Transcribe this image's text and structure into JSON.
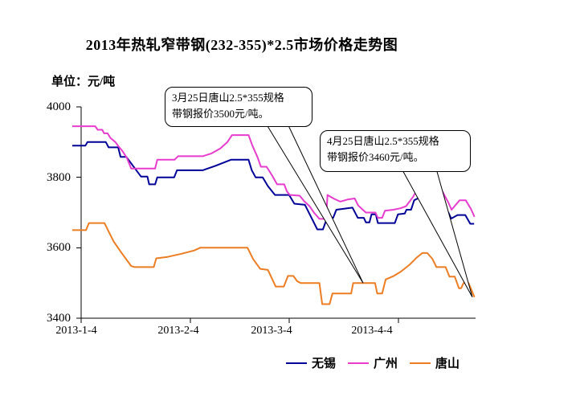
{
  "title": "2013年热轧窄带钢(232-355)*2.5市场价格走势图",
  "unit_label": "单位：元/吨",
  "y_axis": {
    "ticks": [
      "4000",
      "3800",
      "3600",
      "3400"
    ]
  },
  "x_axis": {
    "ticks": [
      {
        "label": "2013-1-4",
        "day": 0
      },
      {
        "label": "2013-2-4",
        "day": 31
      },
      {
        "label": "2013-3-4",
        "day": 59
      },
      {
        "label": "2013-4-4",
        "day": 90
      }
    ]
  },
  "legend": [
    {
      "key": "wuxi",
      "name": "无锡",
      "color": "#000099"
    },
    {
      "key": "guangzhou",
      "name": "广州",
      "color": "#E83CCF"
    },
    {
      "key": "tangshan",
      "name": "唐山",
      "color": "#ED7D22"
    }
  ],
  "callouts": [
    {
      "line1": "3月25日唐山2.5*355规格",
      "line2": "带钢报价3500元/吨。",
      "target_day": 80,
      "target_value": 3500
    },
    {
      "line1": "4月25日唐山2.5*355规格",
      "line2": "带钢报价3460元/吨。",
      "target_day": 111,
      "target_value": 3460
    }
  ],
  "chart_data": {
    "type": "line",
    "title": "2013年热轧窄带钢(232-355)*2.5市场价格走势图",
    "ylabel": "元/吨",
    "ylim": [
      3400,
      4000
    ],
    "grid": false,
    "legend_position": "bottom",
    "x_unit": "day offset from 2013-01-04",
    "x_tick_dates": [
      "2013-1-4",
      "2013-2-4",
      "2013-3-4",
      "2013-4-4"
    ],
    "series": [
      {
        "key": "wuxi",
        "name": "无锡",
        "color": "#000099",
        "points": [
          [
            0,
            3890
          ],
          [
            1.2,
            3890
          ],
          [
            1.8,
            3900
          ],
          [
            7,
            3900
          ],
          [
            7.8,
            3885
          ],
          [
            10.5,
            3885
          ],
          [
            11.2,
            3858
          ],
          [
            12.8,
            3858
          ],
          [
            17,
            3802
          ],
          [
            18.8,
            3802
          ],
          [
            19.3,
            3780
          ],
          [
            21,
            3780
          ],
          [
            21.6,
            3800
          ],
          [
            26.4,
            3800
          ],
          [
            27.2,
            3820
          ],
          [
            34.5,
            3820
          ],
          [
            38,
            3832
          ],
          [
            42.5,
            3850
          ],
          [
            47.5,
            3850
          ],
          [
            48.4,
            3820
          ],
          [
            49.5,
            3800
          ],
          [
            51.5,
            3800
          ],
          [
            53,
            3775
          ],
          [
            55,
            3750
          ],
          [
            59,
            3750
          ],
          [
            60.5,
            3725
          ],
          [
            63.5,
            3722
          ],
          [
            67,
            3652
          ],
          [
            68.6,
            3652
          ],
          [
            69.8,
            3685
          ],
          [
            71.5,
            3685
          ],
          [
            72.4,
            3708
          ],
          [
            77,
            3714
          ],
          [
            78.5,
            3685
          ],
          [
            80.2,
            3685
          ],
          [
            80.8,
            3672
          ],
          [
            81.8,
            3672
          ],
          [
            82.4,
            3695
          ],
          [
            83.6,
            3695
          ],
          [
            84.2,
            3670
          ],
          [
            89,
            3670
          ],
          [
            89.9,
            3695
          ],
          [
            91.8,
            3697
          ],
          [
            92.3,
            3708
          ],
          [
            93.6,
            3708
          ],
          [
            94.5,
            3735
          ],
          [
            95.5,
            3740
          ],
          [
            98,
            3752
          ],
          [
            100.5,
            3748
          ],
          [
            102.5,
            3728
          ],
          [
            104.2,
            3700
          ],
          [
            105,
            3683
          ],
          [
            106.8,
            3693
          ],
          [
            109,
            3693
          ],
          [
            110.4,
            3668
          ],
          [
            111.5,
            3668
          ]
        ]
      },
      {
        "key": "guangzhou",
        "name": "广州",
        "color": "#E83CCF",
        "points": [
          [
            0,
            3945
          ],
          [
            4,
            3945
          ],
          [
            4.7,
            3935
          ],
          [
            6,
            3935
          ],
          [
            6.5,
            3925
          ],
          [
            7.5,
            3925
          ],
          [
            8.3,
            3912
          ],
          [
            9.7,
            3900
          ],
          [
            10.6,
            3888
          ],
          [
            11.7,
            3875
          ],
          [
            13,
            3855
          ],
          [
            14.2,
            3825
          ],
          [
            21,
            3825
          ],
          [
            21.6,
            3850
          ],
          [
            26.5,
            3850
          ],
          [
            27.5,
            3860
          ],
          [
            34.5,
            3860
          ],
          [
            37,
            3868
          ],
          [
            39.5,
            3882
          ],
          [
            41.5,
            3900
          ],
          [
            42.8,
            3920
          ],
          [
            47.5,
            3920
          ],
          [
            48.6,
            3890
          ],
          [
            50,
            3858
          ],
          [
            51,
            3830
          ],
          [
            52.6,
            3830
          ],
          [
            54.2,
            3805
          ],
          [
            55.6,
            3780
          ],
          [
            57.6,
            3780
          ],
          [
            58.4,
            3760
          ],
          [
            59.2,
            3750
          ],
          [
            62,
            3748
          ],
          [
            63.2,
            3733
          ],
          [
            64.8,
            3718
          ],
          [
            66.2,
            3698
          ],
          [
            67.6,
            3682
          ],
          [
            69.5,
            3682
          ],
          [
            69.9,
            3750
          ],
          [
            71.6,
            3740
          ],
          [
            73.5,
            3731
          ],
          [
            75.6,
            3737
          ],
          [
            77.6,
            3740
          ],
          [
            78.6,
            3720
          ],
          [
            80,
            3707
          ],
          [
            80.8,
            3700
          ],
          [
            83.5,
            3700
          ],
          [
            84.2,
            3685
          ],
          [
            85.4,
            3685
          ],
          [
            86.2,
            3705
          ],
          [
            88.6,
            3708
          ],
          [
            90.6,
            3712
          ],
          [
            92.2,
            3718
          ],
          [
            94.2,
            3745
          ],
          [
            95.6,
            3770
          ],
          [
            96.8,
            3780
          ],
          [
            98.2,
            3790
          ],
          [
            100.6,
            3790
          ],
          [
            102.6,
            3758
          ],
          [
            104.2,
            3728
          ],
          [
            105.1,
            3708
          ],
          [
            107.4,
            3735
          ],
          [
            109.1,
            3735
          ],
          [
            110.6,
            3710
          ],
          [
            111.6,
            3688
          ]
        ]
      },
      {
        "key": "tangshan",
        "name": "唐山",
        "color": "#ED7D22",
        "points": [
          [
            0,
            3650
          ],
          [
            1.4,
            3650
          ],
          [
            2.2,
            3670
          ],
          [
            6.6,
            3670
          ],
          [
            9.2,
            3618
          ],
          [
            11.5,
            3585
          ],
          [
            14.2,
            3548
          ],
          [
            15.2,
            3545
          ],
          [
            20.6,
            3545
          ],
          [
            21.3,
            3570
          ],
          [
            24.5,
            3574
          ],
          [
            28.5,
            3583
          ],
          [
            32,
            3592
          ],
          [
            33.8,
            3600
          ],
          [
            47.2,
            3600
          ],
          [
            48.8,
            3568
          ],
          [
            50.8,
            3540
          ],
          [
            53,
            3537
          ],
          [
            55.2,
            3490
          ],
          [
            57.5,
            3490
          ],
          [
            58.7,
            3520
          ],
          [
            60.2,
            3520
          ],
          [
            61.3,
            3505
          ],
          [
            62.3,
            3500
          ],
          [
            67.6,
            3500
          ],
          [
            68.4,
            3440
          ],
          [
            70.5,
            3440
          ],
          [
            71.3,
            3470
          ],
          [
            76.6,
            3470
          ],
          [
            77.2,
            3500
          ],
          [
            83.4,
            3500
          ],
          [
            84,
            3470
          ],
          [
            85.4,
            3470
          ],
          [
            86.4,
            3510
          ],
          [
            88.7,
            3520
          ],
          [
            90.7,
            3532
          ],
          [
            93.2,
            3552
          ],
          [
            95.2,
            3572
          ],
          [
            96.8,
            3585
          ],
          [
            98.2,
            3585
          ],
          [
            99.7,
            3568
          ],
          [
            100.8,
            3545
          ],
          [
            103.4,
            3545
          ],
          [
            104.5,
            3518
          ],
          [
            106,
            3518
          ],
          [
            107.2,
            3485
          ],
          [
            107.8,
            3485
          ],
          [
            108.5,
            3500
          ],
          [
            109.9,
            3500
          ],
          [
            111.6,
            3460
          ]
        ]
      }
    ],
    "annotations": [
      {
        "series": "唐山",
        "date": "3月25日",
        "day": 80,
        "value": 3500,
        "text": "3月25日唐山2.5*355规格带钢报价3500元/吨。"
      },
      {
        "series": "唐山",
        "date": "4月25日",
        "day": 111,
        "value": 3460,
        "text": "4月25日唐山2.5*355规格带钢报价3460元/吨。"
      }
    ]
  }
}
